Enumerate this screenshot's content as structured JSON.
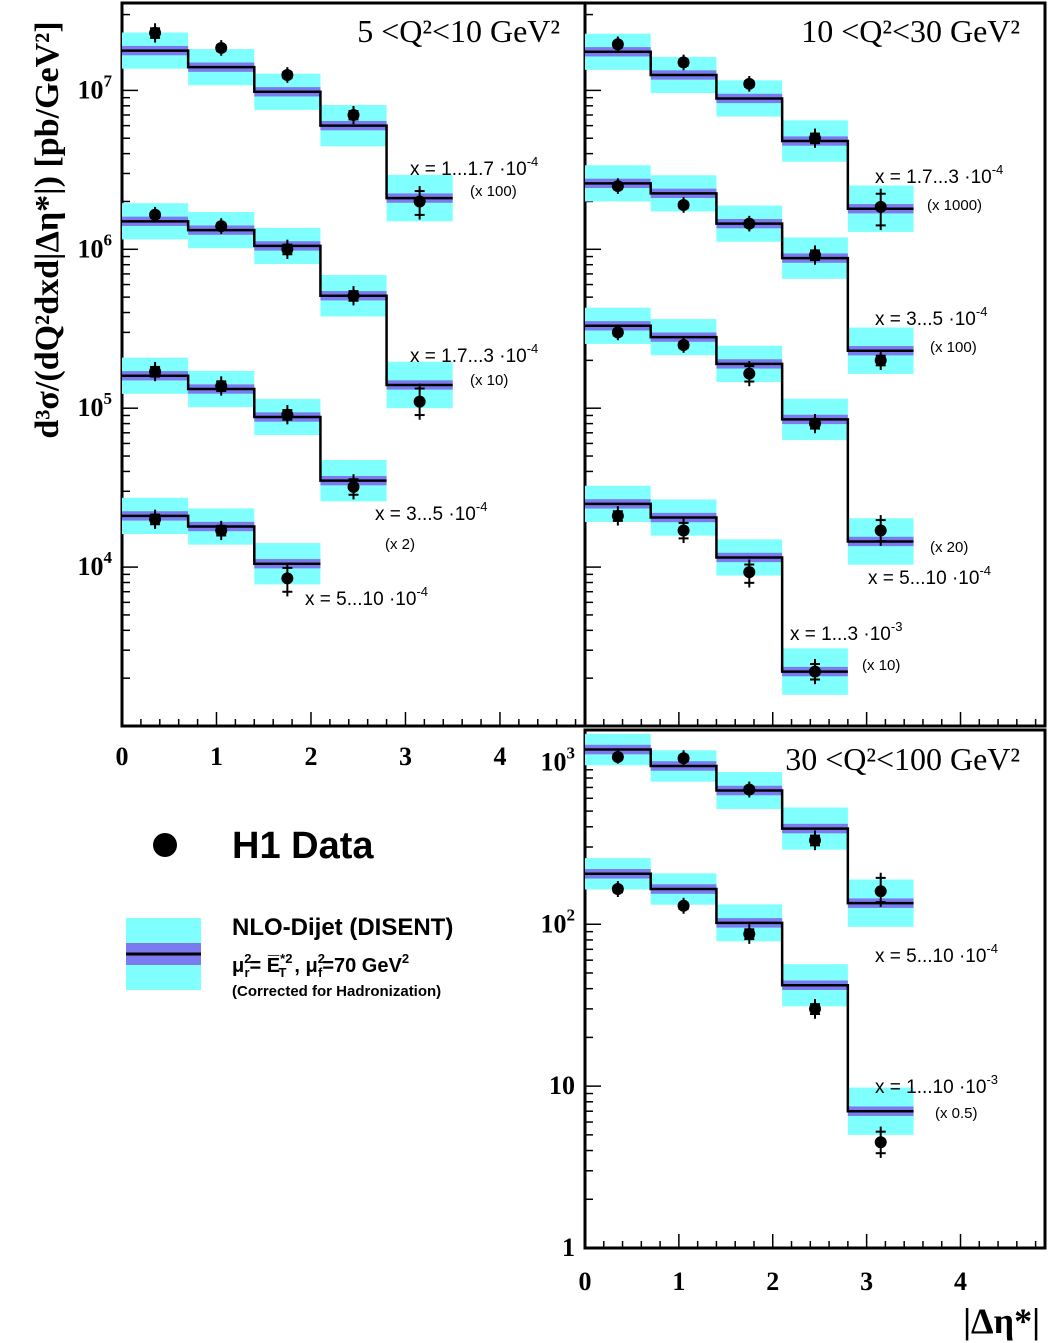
{
  "chart_data": {
    "type": "step",
    "y_axis_title": "d³σ/(dQ²dxd|Δη*|) [pb/GeV²]",
    "x_axis_title": "|Δη*|",
    "x_tick_labels": [
      "0",
      "1",
      "2",
      "3",
      "4"
    ],
    "x_range": [
      0,
      4.9
    ],
    "bin_edges": [
      0,
      0.7,
      1.4,
      2.1,
      2.8,
      3.5
    ],
    "legend": {
      "data_label": "H1 Data",
      "nlo_title": "NLO-Dijet (DISENT)",
      "nlo_scale_pre": "μ",
      "nlo_scale_r": "r",
      "nlo_scale_mid1": "= ",
      "nlo_scale_et": "E̅",
      "nlo_scale_t": "T",
      "nlo_scale_mid2": ", μ",
      "nlo_scale_f": "f",
      "nlo_scale_post": "=70 GeV",
      "nlo_scale_sq": "2",
      "nlo_scale_star": "*2",
      "nlo_note": "(Corrected for Hadronization)"
    },
    "panels": [
      {
        "id": "q2-5-10",
        "title": "5 <Q²<10 GeV²",
        "y_log_range": [
          3.0,
          7.55
        ],
        "y_tick_labels": [
          {
            "exp": 4,
            "base": "10",
            "sup": "4"
          },
          {
            "exp": 5,
            "base": "10",
            "sup": "5"
          },
          {
            "exp": 6,
            "base": "10",
            "sup": "6"
          },
          {
            "exp": 7,
            "base": "10",
            "sup": "7"
          }
        ],
        "series": [
          {
            "label": "x = 1...1.7 ·10",
            "label_exp": "-4",
            "scale": "(x 100)",
            "nlo": [
              17800000,
              14000000,
              9800000,
              6000000,
              2100000
            ],
            "data": [
              23000000,
              18500000,
              12500000,
              7000000,
              2000000
            ],
            "err_up": [
              1.15,
              1.12,
              1.12,
              1.14,
              1.25
            ],
            "err_dn": [
              1.15,
              1.12,
              1.12,
              1.14,
              1.3
            ],
            "band": [
              1.3,
              1.3,
              1.3,
              1.35,
              1.4
            ]
          },
          {
            "label": "x = 1.7...3 ·10",
            "label_exp": "-4",
            "scale": "(x 10)",
            "nlo": [
              1500000,
              1320000,
              1050000,
              510000,
              140000
            ],
            "data": [
              1650000,
              1400000,
              1000000,
              510000,
              110000
            ],
            "err_up": [
              1.12,
              1.12,
              1.15,
              1.15,
              1.3
            ],
            "err_dn": [
              1.12,
              1.12,
              1.15,
              1.15,
              1.3
            ],
            "band": [
              1.3,
              1.3,
              1.3,
              1.35,
              1.4
            ]
          },
          {
            "label": "x = 3...5 ·10",
            "label_exp": "-4",
            "scale": "(x 2)",
            "nlo": [
              160000,
              132000,
              88000,
              35000
            ],
            "data": [
              170000,
              138000,
              91000,
              32000
            ],
            "err_up": [
              1.15,
              1.15,
              1.15,
              1.2
            ],
            "err_dn": [
              1.15,
              1.15,
              1.15,
              1.2
            ],
            "band": [
              1.3,
              1.3,
              1.3,
              1.35
            ]
          },
          {
            "label": "x = 5...10 ·10",
            "label_exp": "-4",
            "scale": "",
            "nlo": [
              21000,
              18000,
              10500
            ],
            "data": [
              20000,
              17000,
              8500
            ],
            "err_up": [
              1.15,
              1.15,
              1.25
            ],
            "err_dn": [
              1.15,
              1.15,
              1.3
            ],
            "band": [
              1.3,
              1.3,
              1.35
            ]
          }
        ]
      },
      {
        "id": "q2-10-30",
        "title": "10 <Q²<30 GeV²",
        "y_log_range": [
          3.0,
          7.55
        ],
        "y_tick_labels": [],
        "series": [
          {
            "label": "x = 1.7...3 ·10",
            "label_exp": "-4",
            "scale": "(x 1000)",
            "nlo": [
              17500000,
              12500000,
              8900000,
              4800000,
              1800000
            ],
            "data": [
              19500000,
              15000000,
              11000000,
              5000000,
              1850000
            ],
            "err_up": [
              1.12,
              1.12,
              1.12,
              1.15,
              1.3
            ],
            "err_dn": [
              1.12,
              1.12,
              1.12,
              1.15,
              1.4
            ],
            "band": [
              1.3,
              1.3,
              1.3,
              1.35,
              1.4
            ]
          },
          {
            "label": "x = 3...5 ·10",
            "label_exp": "-4",
            "scale": "(x 100)",
            "nlo": [
              2600000,
              2250000,
              1450000,
              880000,
              230000
            ],
            "data": [
              2500000,
              1900000,
              1450000,
              920000,
              200000
            ],
            "err_up": [
              1.12,
              1.12,
              1.12,
              1.15,
              1.15
            ],
            "err_dn": [
              1.12,
              1.12,
              1.12,
              1.15,
              1.15
            ],
            "band": [
              1.3,
              1.3,
              1.3,
              1.35,
              1.4
            ]
          },
          {
            "label": "x = 5...10 ·10",
            "label_exp": "-4",
            "scale": "(x 20)",
            "nlo": [
              330000,
              280000,
              190000,
              85000,
              14500
            ],
            "data": [
              300000,
              250000,
              165000,
              80000,
              17000
            ],
            "err_up": [
              1.12,
              1.12,
              1.2,
              1.15,
              1.25
            ],
            "err_dn": [
              1.12,
              1.12,
              1.2,
              1.15,
              1.25
            ],
            "band": [
              1.3,
              1.3,
              1.3,
              1.35,
              1.4
            ]
          },
          {
            "label": "x = 1...3 ·10",
            "label_exp": "-3",
            "scale": "(x 10)",
            "nlo": [
              25000,
              20500,
              11500,
              2200
            ],
            "data": [
              21000,
              17000,
              9300,
              2200
            ],
            "err_up": [
              1.15,
              1.2,
              1.2,
              1.2
            ],
            "err_dn": [
              1.15,
              1.2,
              1.25,
              1.2
            ],
            "band": [
              1.3,
              1.3,
              1.3,
              1.4
            ]
          }
        ]
      },
      {
        "id": "q2-30-100",
        "title": "30 <Q²<100 GeV²",
        "y_log_range": [
          0.0,
          3.2
        ],
        "y_tick_labels": [
          {
            "exp": 0,
            "base": "1",
            "sup": ""
          },
          {
            "exp": 1,
            "base": "10",
            "sup": ""
          },
          {
            "exp": 2,
            "base": "10",
            "sup": "2"
          },
          {
            "exp": 3,
            "base": "10",
            "sup": "3"
          }
        ],
        "series": [
          {
            "label": "x = 5...10 ·10",
            "label_exp": "-4",
            "scale": "",
            "nlo": [
              1200,
              950,
              670,
              390,
              135
            ],
            "data": [
              1080,
              1060,
              680,
              330,
              160
            ],
            "err_up": [
              1.1,
              1.12,
              1.12,
              1.15,
              1.3
            ],
            "err_dn": [
              1.1,
              1.12,
              1.12,
              1.15,
              1.25
            ],
            "band": [
              1.25,
              1.25,
              1.3,
              1.35,
              1.4
            ]
          },
          {
            "label": "x = 1...10 ·10",
            "label_exp": "-3",
            "scale": "(x 0.5)",
            "nlo": [
              205,
              165,
              102,
              42,
              7
            ],
            "data": [
              165,
              130,
              87,
              30,
              4.5
            ],
            "err_up": [
              1.12,
              1.12,
              1.15,
              1.15,
              1.25
            ],
            "err_dn": [
              1.12,
              1.12,
              1.15,
              1.15,
              1.25
            ],
            "band": [
              1.25,
              1.25,
              1.3,
              1.35,
              1.4
            ]
          }
        ]
      }
    ]
  }
}
